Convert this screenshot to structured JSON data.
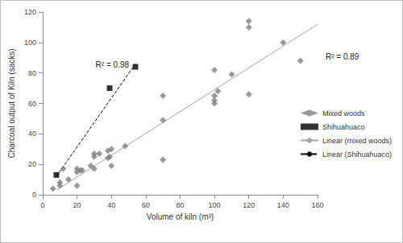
{
  "chart_data": {
    "type": "scatter",
    "x_label": "Volume of kiln (m³)",
    "y_label": "Charcoal output of Kiln (sacks)",
    "xlim": [
      0,
      160
    ],
    "xticks": [
      0,
      20,
      40,
      60,
      80,
      100,
      120,
      140,
      160
    ],
    "ylim": [
      0,
      120
    ],
    "yticks": [
      0,
      20,
      40,
      60,
      80,
      100,
      120
    ],
    "grid": false,
    "legend": "right",
    "series": [
      {
        "name": "Mixed woods",
        "type": "scatter",
        "marker": "diamond",
        "color": "#7f7f7f",
        "x": [
          6,
          10,
          10,
          12,
          15,
          20,
          20,
          20,
          22,
          23,
          28,
          30,
          30,
          30,
          33,
          38,
          38,
          40,
          40,
          39,
          48,
          70,
          70,
          70,
          100,
          100,
          100,
          100,
          102,
          110,
          120,
          120,
          120,
          140,
          150
        ],
        "values": [
          4,
          6,
          8,
          17,
          10,
          17,
          6,
          15,
          16,
          16,
          19,
          27,
          25,
          17,
          27,
          29,
          24,
          30,
          19,
          25,
          32,
          65,
          49,
          23,
          82,
          65,
          60,
          62,
          68,
          79,
          110,
          114,
          66,
          100,
          88
        ]
      },
      {
        "name": "Shihuahuaco",
        "type": "scatter",
        "marker": "square",
        "color": "#000000",
        "x": [
          8,
          39,
          54
        ],
        "values": [
          13,
          70,
          84
        ]
      },
      {
        "name": "Linear (mixed woods)",
        "type": "line",
        "line_style": "solid",
        "color": "#a6a6a6",
        "x": [
          8,
          160
        ],
        "values": [
          3,
          112
        ]
      },
      {
        "name": "Linear (Shihuahuaco)",
        "type": "line",
        "line_style": "dashed",
        "color": "#000000",
        "x": [
          8,
          54
        ],
        "values": [
          12,
          86
        ]
      }
    ],
    "annotations": [
      {
        "text": "R² = 0.98",
        "series": "Linear (Shihuahuaco)"
      },
      {
        "text": "R² = 0.89",
        "series": "Linear (mixed woods)"
      }
    ]
  }
}
